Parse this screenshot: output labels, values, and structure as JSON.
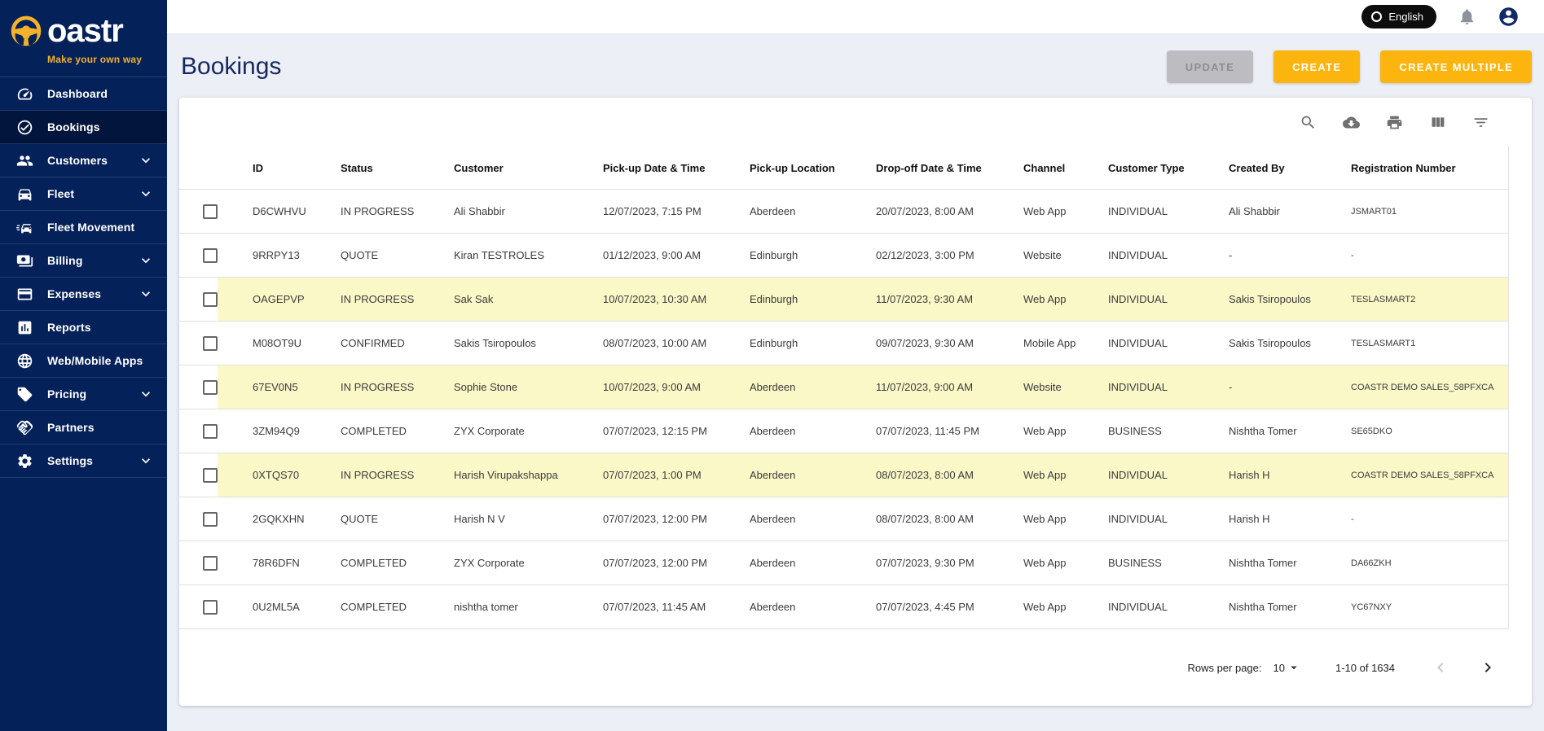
{
  "colors": {
    "accent_yellow": "#fcb40f",
    "sidebar_navy": "#04215a",
    "row_highlight": "#fbf8c8",
    "logo_yellow": "#f2b22b"
  },
  "brand": {
    "wordmark_rest": "oastr",
    "tagline": "Make your own way"
  },
  "topbar": {
    "language_label": "English"
  },
  "sidebar": {
    "items": [
      {
        "label": "Dashboard",
        "icon": "dashboard-icon",
        "chevron": false,
        "active": false
      },
      {
        "label": "Bookings",
        "icon": "bookings-check-icon",
        "chevron": false,
        "active": true
      },
      {
        "label": "Customers",
        "icon": "customers-icon",
        "chevron": true,
        "active": false
      },
      {
        "label": "Fleet",
        "icon": "fleet-car-icon",
        "chevron": true,
        "active": false
      },
      {
        "label": "Fleet Movement",
        "icon": "fleet-movement-icon",
        "chevron": false,
        "active": false
      },
      {
        "label": "Billing",
        "icon": "billing-icon",
        "chevron": true,
        "active": false
      },
      {
        "label": "Expenses",
        "icon": "expenses-card-icon",
        "chevron": true,
        "active": false
      },
      {
        "label": "Reports",
        "icon": "reports-chart-icon",
        "chevron": false,
        "active": false
      },
      {
        "label": "Web/Mobile Apps",
        "icon": "globe-icon",
        "chevron": false,
        "active": false
      },
      {
        "label": "Pricing",
        "icon": "pricing-tag-icon",
        "chevron": true,
        "active": false
      },
      {
        "label": "Partners",
        "icon": "partners-handshake-icon",
        "chevron": false,
        "active": false
      },
      {
        "label": "Settings",
        "icon": "settings-gear-icon",
        "chevron": true,
        "active": false
      }
    ]
  },
  "page": {
    "title": "Bookings",
    "buttons": [
      {
        "label": "UPDATE",
        "disabled": true
      },
      {
        "label": "CREATE",
        "disabled": false
      },
      {
        "label": "CREATE MULTIPLE",
        "disabled": false
      }
    ]
  },
  "table": {
    "toolbar_icons": [
      "search-icon",
      "cloud-download-icon",
      "print-icon",
      "view-columns-icon",
      "filter-icon"
    ],
    "columns": [
      "ID",
      "Status",
      "Customer",
      "Pick-up Date & Time",
      "Pick-up Location",
      "Drop-off Date & Time",
      "Channel",
      "Customer Type",
      "Created By",
      "Registration Number"
    ],
    "rows": [
      {
        "id": "D6CWHVU",
        "status": "IN PROGRESS",
        "customer": "Ali Shabbir",
        "pickup_dt": "12/07/2023, 7:15 PM",
        "pickup_loc": "Aberdeen",
        "dropoff_dt": "20/07/2023, 8:00 AM",
        "channel": "Web App",
        "customer_type": "INDIVIDUAL",
        "created_by": "Ali Shabbir",
        "reg_number": "JSMART01",
        "highlighted": false
      },
      {
        "id": "9RRPY13",
        "status": "QUOTE",
        "customer": "Kiran TESTROLES",
        "pickup_dt": "01/12/2023, 9:00 AM",
        "pickup_loc": "Edinburgh",
        "dropoff_dt": "02/12/2023, 3:00 PM",
        "channel": "Website",
        "customer_type": "INDIVIDUAL",
        "created_by": "-",
        "reg_number": "-",
        "highlighted": false
      },
      {
        "id": "OAGEPVP",
        "status": "IN PROGRESS",
        "customer": "Sak Sak",
        "pickup_dt": "10/07/2023, 10:30 AM",
        "pickup_loc": "Edinburgh",
        "dropoff_dt": "11/07/2023, 9:30 AM",
        "channel": "Web App",
        "customer_type": "INDIVIDUAL",
        "created_by": "Sakis Tsiropoulos",
        "reg_number": "TESLASMART2",
        "highlighted": true
      },
      {
        "id": "M08OT9U",
        "status": "CONFIRMED",
        "customer": "Sakis Tsiropoulos",
        "pickup_dt": "08/07/2023, 10:00 AM",
        "pickup_loc": "Edinburgh",
        "dropoff_dt": "09/07/2023, 9:30 AM",
        "channel": "Mobile App",
        "customer_type": "INDIVIDUAL",
        "created_by": "Sakis Tsiropoulos",
        "reg_number": "TESLASMART1",
        "highlighted": false
      },
      {
        "id": "67EV0N5",
        "status": "IN PROGRESS",
        "customer": "Sophie Stone",
        "pickup_dt": "10/07/2023, 9:00 AM",
        "pickup_loc": "Aberdeen",
        "dropoff_dt": "11/07/2023, 9:00 AM",
        "channel": "Website",
        "customer_type": "INDIVIDUAL",
        "created_by": "-",
        "reg_number": "COASTR DEMO SALES_58PFXCA",
        "highlighted": true
      },
      {
        "id": "3ZM94Q9",
        "status": "COMPLETED",
        "customer": "ZYX Corporate",
        "pickup_dt": "07/07/2023, 12:15 PM",
        "pickup_loc": "Aberdeen",
        "dropoff_dt": "07/07/2023, 11:45 PM",
        "channel": "Web App",
        "customer_type": "BUSINESS",
        "created_by": "Nishtha Tomer",
        "reg_number": "SE65DKO",
        "highlighted": false
      },
      {
        "id": "0XTQS70",
        "status": "IN PROGRESS",
        "customer": "Harish Virupakshappa",
        "pickup_dt": "07/07/2023, 1:00 PM",
        "pickup_loc": "Aberdeen",
        "dropoff_dt": "08/07/2023, 8:00 AM",
        "channel": "Web App",
        "customer_type": "INDIVIDUAL",
        "created_by": "Harish H",
        "reg_number": "COASTR DEMO SALES_58PFXCA",
        "highlighted": true
      },
      {
        "id": "2GQKXHN",
        "status": "QUOTE",
        "customer": "Harish N V",
        "pickup_dt": "07/07/2023, 12:00 PM",
        "pickup_loc": "Aberdeen",
        "dropoff_dt": "08/07/2023, 8:00 AM",
        "channel": "Web App",
        "customer_type": "INDIVIDUAL",
        "created_by": "Harish H",
        "reg_number": "-",
        "highlighted": false
      },
      {
        "id": "78R6DFN",
        "status": "COMPLETED",
        "customer": "ZYX Corporate",
        "pickup_dt": "07/07/2023, 12:00 PM",
        "pickup_loc": "Aberdeen",
        "dropoff_dt": "07/07/2023, 9:30 PM",
        "channel": "Web App",
        "customer_type": "BUSINESS",
        "created_by": "Nishtha Tomer",
        "reg_number": "DA66ZKH",
        "highlighted": false
      },
      {
        "id": "0U2ML5A",
        "status": "COMPLETED",
        "customer": "nishtha tomer",
        "pickup_dt": "07/07/2023, 11:45 AM",
        "pickup_loc": "Aberdeen",
        "dropoff_dt": "07/07/2023, 4:45 PM",
        "channel": "Web App",
        "customer_type": "INDIVIDUAL",
        "created_by": "Nishtha Tomer",
        "reg_number": "YC67NXY",
        "highlighted": false
      }
    ]
  },
  "pagination": {
    "rows_per_page_label": "Rows per page:",
    "rows_per_page_value": "10",
    "range_text": "1-10 of 1634"
  }
}
